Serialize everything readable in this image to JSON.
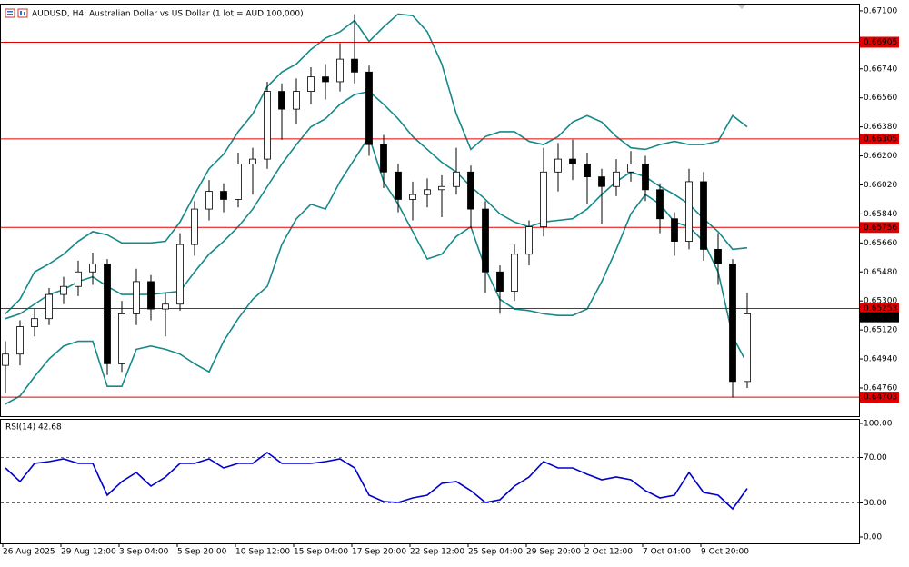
{
  "chart_data": [
    {
      "type": "candlestick",
      "title": "AUDUSD, H4:  Australian Dollar vs US Dollar (1 lot = AUD 100,000)",
      "categories": [
        "26 Aug 2025",
        null,
        null,
        null,
        "29 Aug 12:00",
        null,
        null,
        null,
        "3 Sep 04:00",
        null,
        null,
        null,
        "5 Sep 20:00",
        null,
        null,
        null,
        "10 Sep 12:00",
        null,
        null,
        null,
        "15 Sep 04:00",
        null,
        null,
        null,
        "17 Sep 20:00",
        null,
        null,
        null,
        "22 Sep 12:00",
        null,
        null,
        null,
        "25 Sep 04:00",
        null,
        null,
        null,
        "29 Sep 20:00",
        null,
        null,
        null,
        "2 Oct 12:00",
        null,
        null,
        null,
        "7 Oct 04:00",
        null,
        null,
        null,
        "9 Oct 20:00",
        null,
        null,
        null
      ],
      "open": [
        0.649,
        0.6497,
        0.6514,
        0.6519,
        0.6534,
        0.6539,
        0.6548,
        0.6553,
        0.6491,
        0.6522,
        0.6542,
        0.6525,
        0.6528,
        0.6565,
        0.6587,
        0.6598,
        0.6593,
        0.6615,
        0.6618,
        0.666,
        0.6649,
        0.666,
        0.6669,
        0.6666,
        0.668,
        0.6672,
        0.6627,
        0.661,
        0.6593,
        0.6596,
        0.6599,
        0.6601,
        0.661,
        0.6587,
        0.6548,
        0.6536,
        0.6559,
        0.6576,
        0.661,
        0.6618,
        0.6615,
        0.6607,
        0.6601,
        0.661,
        0.6615,
        0.6599,
        0.6581,
        0.6567,
        0.6604,
        0.6562,
        0.6553,
        0.648
      ],
      "high": [
        0.6505,
        0.6518,
        0.6525,
        0.6538,
        0.6545,
        0.6555,
        0.656,
        0.6556,
        0.653,
        0.655,
        0.6546,
        0.6535,
        0.6572,
        0.6592,
        0.6605,
        0.6603,
        0.6622,
        0.6625,
        0.6666,
        0.6665,
        0.6668,
        0.6675,
        0.6677,
        0.669,
        0.6708,
        0.6676,
        0.6633,
        0.6615,
        0.6604,
        0.6606,
        0.6608,
        0.6625,
        0.6614,
        0.6592,
        0.6552,
        0.6565,
        0.658,
        0.6625,
        0.6628,
        0.663,
        0.6622,
        0.6612,
        0.6618,
        0.6623,
        0.662,
        0.6603,
        0.6585,
        0.6612,
        0.661,
        0.6572,
        0.6556,
        0.6535
      ],
      "low": [
        0.6473,
        0.649,
        0.6508,
        0.6515,
        0.6528,
        0.6533,
        0.654,
        0.6484,
        0.6486,
        0.6515,
        0.6518,
        0.6508,
        0.6524,
        0.6558,
        0.658,
        0.6585,
        0.6588,
        0.6596,
        0.6612,
        0.663,
        0.664,
        0.6652,
        0.6655,
        0.666,
        0.6665,
        0.662,
        0.66,
        0.6585,
        0.658,
        0.6588,
        0.6582,
        0.6596,
        0.6575,
        0.6535,
        0.6522,
        0.653,
        0.6552,
        0.657,
        0.6598,
        0.6605,
        0.659,
        0.6578,
        0.6595,
        0.6604,
        0.6592,
        0.6572,
        0.6558,
        0.6562,
        0.6555,
        0.654,
        0.647,
        0.6476
      ],
      "close": [
        0.6497,
        0.6514,
        0.6519,
        0.6534,
        0.6539,
        0.6548,
        0.6553,
        0.6491,
        0.6522,
        0.6542,
        0.6525,
        0.6528,
        0.6565,
        0.6587,
        0.6598,
        0.6593,
        0.6615,
        0.6618,
        0.666,
        0.6649,
        0.666,
        0.6669,
        0.6666,
        0.668,
        0.6672,
        0.6627,
        0.661,
        0.6593,
        0.6596,
        0.6599,
        0.6601,
        0.661,
        0.6587,
        0.6548,
        0.6536,
        0.6559,
        0.6576,
        0.661,
        0.6618,
        0.6615,
        0.6607,
        0.6601,
        0.661,
        0.6615,
        0.6599,
        0.6581,
        0.6567,
        0.6604,
        0.6562,
        0.6553,
        0.648,
        0.6522
      ],
      "up_color": "#ffffff",
      "down_color": "#000000",
      "overlays": [
        {
          "color": "#16898a",
          "values": [
            0.6522,
            0.6531,
            0.6548,
            0.6553,
            0.6559,
            0.6567,
            0.6573,
            0.6571,
            0.6566,
            0.6566,
            0.6566,
            0.6567,
            0.6579,
            0.6596,
            0.6612,
            0.6621,
            0.6635,
            0.6646,
            0.6663,
            0.6672,
            0.6677,
            0.6686,
            0.6693,
            0.6697,
            0.6704,
            0.6691,
            0.67,
            0.6708,
            0.6707,
            0.6697,
            0.6677,
            0.6646,
            0.6624,
            0.6632,
            0.6635,
            0.6635,
            0.6629,
            0.6627,
            0.6632,
            0.6641,
            0.6645,
            0.6641,
            0.6632,
            0.6625,
            0.6624,
            0.6627,
            0.6629,
            0.6627,
            0.6627,
            0.6629,
            0.6645,
            0.6638
          ]
        },
        {
          "color": "#16898a",
          "values": [
            0.6519,
            0.6522,
            0.6528,
            0.6534,
            0.6537,
            0.6542,
            0.6545,
            0.6539,
            0.6534,
            0.6534,
            0.6534,
            0.6535,
            0.6536,
            0.6548,
            0.6559,
            0.6567,
            0.6576,
            0.6587,
            0.6601,
            0.6615,
            0.6627,
            0.6638,
            0.6643,
            0.6652,
            0.6658,
            0.666,
            0.6652,
            0.6643,
            0.6632,
            0.6624,
            0.6616,
            0.661,
            0.6601,
            0.6593,
            0.6584,
            0.6579,
            0.6576,
            0.6579,
            0.658,
            0.6581,
            0.6587,
            0.6596,
            0.6604,
            0.661,
            0.6607,
            0.6601,
            0.6596,
            0.659,
            0.6581,
            0.6573,
            0.6562,
            0.6563
          ]
        },
        {
          "color": "#16898a",
          "values": [
            0.6466,
            0.6471,
            0.6483,
            0.6494,
            0.6502,
            0.6505,
            0.6505,
            0.6477,
            0.6477,
            0.65,
            0.6502,
            0.65,
            0.6497,
            0.6491,
            0.6486,
            0.6505,
            0.6519,
            0.6531,
            0.6539,
            0.6565,
            0.6581,
            0.659,
            0.6587,
            0.6604,
            0.6618,
            0.6632,
            0.6604,
            0.659,
            0.6573,
            0.6556,
            0.6559,
            0.657,
            0.6576,
            0.655,
            0.6531,
            0.6525,
            0.6524,
            0.6522,
            0.6521,
            0.6521,
            0.6525,
            0.6542,
            0.6562,
            0.6584,
            0.6596,
            0.659,
            0.6579,
            0.6576,
            0.6567,
            0.6548,
            0.6508,
            0.6491
          ]
        }
      ],
      "ylim": [
        0.64585,
        0.67139
      ],
      "yticks": [
        {
          "value": 0.671,
          "label": "0.67100"
        },
        {
          "value": 0.6674,
          "label": "0.66740"
        },
        {
          "value": 0.6656,
          "label": "0.66560"
        },
        {
          "value": 0.6638,
          "label": "0.66380"
        },
        {
          "value": 0.662,
          "label": "0.66200"
        },
        {
          "value": 0.6602,
          "label": "0.66020"
        },
        {
          "value": 0.6584,
          "label": "0.65840"
        },
        {
          "value": 0.6566,
          "label": "0.65660"
        },
        {
          "value": 0.6548,
          "label": "0.65480"
        },
        {
          "value": 0.653,
          "label": "0.65300"
        },
        {
          "value": 0.6512,
          "label": "0.65120"
        },
        {
          "value": 0.6494,
          "label": "0.64940"
        },
        {
          "value": 0.6476,
          "label": "0.64760"
        }
      ],
      "levels": [
        0.66905,
        0.66305,
        0.65756,
        0.65253,
        0.64703
      ],
      "level_color": "#e00000",
      "last_price": 0.65224,
      "last_price_color": "#000000"
    },
    {
      "type": "line",
      "title": "RSI(14) 42.68",
      "color": "#0000cd",
      "values": [
        60.8,
        48.8,
        64.8,
        66.4,
        68.8,
        64.8,
        64.8,
        36.8,
        48.8,
        56.8,
        44.8,
        52.8,
        64.8,
        64.8,
        68.8,
        60.8,
        64.8,
        64.8,
        74.4,
        64.8,
        64.8,
        64.8,
        66.4,
        68.8,
        60.8,
        36.8,
        31.2,
        30.4,
        34.4,
        36.8,
        47.2,
        48.8,
        40.8,
        30.4,
        32.8,
        44.8,
        52.8,
        66.4,
        60.8,
        60.8,
        55.2,
        50.4,
        52.8,
        50.4,
        40.8,
        34.4,
        36.8,
        56.8,
        39.2,
        36.8,
        24.8,
        42.68
      ],
      "ylim": [
        -5.6,
        103.2
      ],
      "yticks": [
        {
          "value": 100,
          "label": "100.00"
        },
        {
          "value": 70,
          "label": "70.00"
        },
        {
          "value": 30,
          "label": "30.00"
        },
        {
          "value": 0,
          "label": "0.00"
        }
      ],
      "levels": [
        70,
        30
      ],
      "level_color": "#2e8b57"
    }
  ]
}
